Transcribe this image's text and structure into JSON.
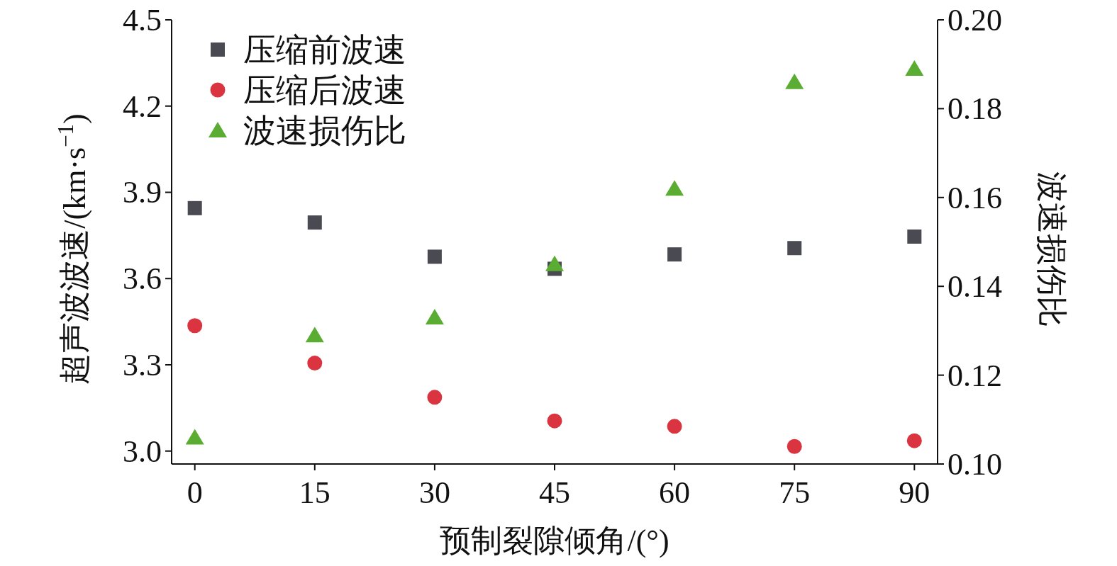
{
  "chart_data": {
    "type": "scatter",
    "xlabel": "预制裂隙倾角/(°)",
    "ylabel": "超声波波速/(km·s$^{−1}$)",
    "y2label": "波速损伤比",
    "x": [
      0,
      15,
      30,
      45,
      60,
      75,
      90
    ],
    "xlim": [
      -2.9,
      92.9
    ],
    "xticks": [
      0,
      15,
      30,
      45,
      60,
      75,
      90
    ],
    "ylim": [
      2.955,
      4.5
    ],
    "yticks": [
      {
        "value": 3.0,
        "label": "3.0"
      },
      {
        "value": 3.3,
        "label": "3.3"
      },
      {
        "value": 3.6,
        "label": "3.6"
      },
      {
        "value": 3.9,
        "label": "3.9"
      },
      {
        "value": 4.2,
        "label": "4.2"
      },
      {
        "value": 4.5,
        "label": "4.5"
      }
    ],
    "y2lim": [
      0.1,
      0.2
    ],
    "y2ticks": [
      {
        "value": 0.1,
        "label": "0.10"
      },
      {
        "value": 0.12,
        "label": "0.12"
      },
      {
        "value": 0.14,
        "label": "0.14"
      },
      {
        "value": 0.16,
        "label": "0.16"
      },
      {
        "value": 0.18,
        "label": "0.18"
      },
      {
        "value": 0.2,
        "label": "0.20"
      }
    ],
    "legend": "top left",
    "grid": false,
    "series": [
      {
        "name": "压缩前波速",
        "color": "#4a4a52",
        "marker": "square",
        "values": [
          3.845,
          3.795,
          3.676,
          3.634,
          3.684,
          3.706,
          3.746
        ]
      },
      {
        "name": "压缩后波速",
        "color": "#d9343f",
        "marker": "circle",
        "values": [
          3.436,
          3.306,
          3.187,
          3.105,
          3.086,
          3.016,
          3.036
        ]
      },
      {
        "name": "波速损伤比",
        "color": "#5aac32",
        "marker": "triangle",
        "axis": "y2",
        "values": [
          0.106,
          0.129,
          0.133,
          0.145,
          0.162,
          0.186,
          0.189
        ]
      }
    ]
  }
}
